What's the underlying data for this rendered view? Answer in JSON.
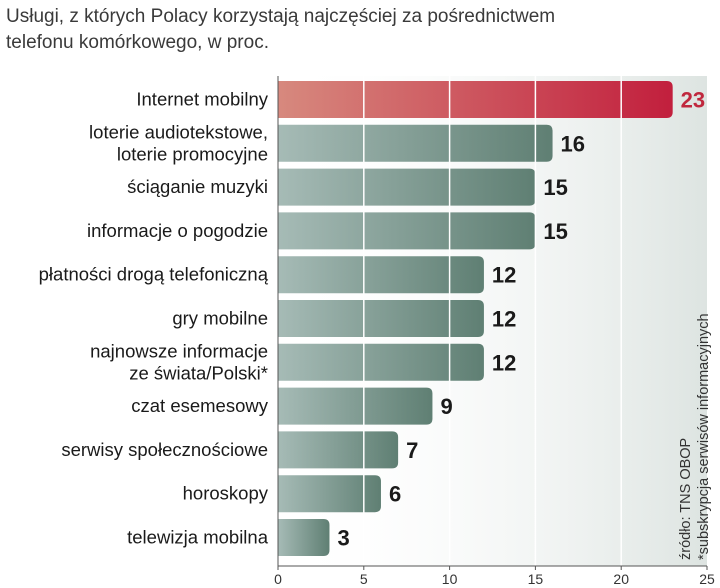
{
  "chart_data": {
    "type": "bar",
    "orientation": "horizontal",
    "title": "Usługi, z których Polacy korzystają najczęściej za pośrednictwem telefonu komórkowego, w proc.",
    "categories": [
      [
        "Internet mobilny"
      ],
      [
        "loterie audiotekstowe,",
        "loterie promocyjne"
      ],
      [
        "ściąganie muzyki"
      ],
      [
        "informacje o pogodzie"
      ],
      [
        "płatności drogą telefoniczną"
      ],
      [
        "gry mobilne"
      ],
      [
        "najnowsze informacje",
        "ze świata/Polski*"
      ],
      [
        "czat esemesowy"
      ],
      [
        "serwisy społecznościowe"
      ],
      [
        "horoskopy"
      ],
      [
        "telewizja mobilna"
      ]
    ],
    "values": [
      23,
      16,
      15,
      15,
      12,
      12,
      12,
      9,
      7,
      6,
      3
    ],
    "highlight_index": 0,
    "xlim": [
      0,
      25
    ],
    "xticks": [
      0,
      5,
      10,
      15,
      20,
      25
    ],
    "grid": true,
    "source_note": "źródło: TNS OBOP",
    "footnote": "*subskrypcja serwisów informacyjnych"
  },
  "colors": {
    "highlight_start": "#d7897e",
    "highlight_end": "#c21f3d",
    "bar_start": "#a6bbb6",
    "bar_end": "#5f7f73",
    "grid": "#ffffff",
    "panel_dark": "#dde4e1",
    "axis": "#555555"
  }
}
